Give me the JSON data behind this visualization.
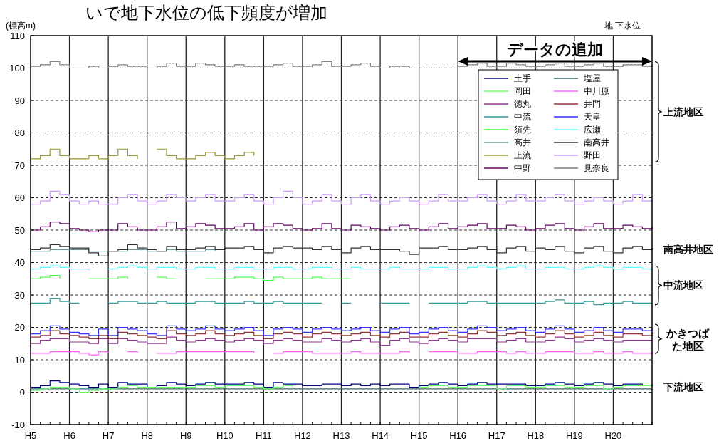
{
  "chart_data": {
    "type": "step",
    "title": "いで地下水位の低下頻度が増加",
    "ylabel": "(標高m)",
    "annotations": [
      "地 下水位",
      "データの追加",
      "上流地区",
      "南高井地区",
      "中流地区",
      "かきつばた地区",
      "下流地区"
    ],
    "categories": [
      "H5",
      null,
      null,
      null,
      "H6",
      null,
      null,
      null,
      "H7",
      null,
      null,
      null,
      "H8",
      null,
      null,
      null,
      "H9",
      null,
      null,
      null,
      "H10",
      null,
      null,
      null,
      "H11",
      null,
      null,
      null,
      "H12",
      null,
      null,
      null,
      "H13",
      null,
      null,
      null,
      "H14",
      null,
      null,
      null,
      "H15",
      null,
      null,
      null,
      "H16",
      null,
      null,
      null,
      "H17",
      null,
      null,
      null,
      "H18",
      null,
      null,
      null,
      "H19",
      null,
      null,
      null,
      "H20",
      null,
      null,
      null,
      null
    ],
    "ylim": [
      -10,
      110
    ],
    "yticks": [
      -10,
      0,
      10,
      20,
      30,
      40,
      50,
      60,
      70,
      80,
      90,
      100,
      110
    ],
    "grid": true,
    "legend": "top right",
    "marker": "none",
    "line_style": "solid",
    "series": [
      {
        "name": "土手",
        "color": "#000080",
        "values": [
          1.5,
          2,
          3.5,
          3,
          2.5,
          2,
          1.5,
          2.5,
          1.5,
          3,
          2.5,
          2.5,
          1.5,
          2,
          3,
          2.5,
          2,
          2.5,
          3,
          2.5,
          2.5,
          2.5,
          3,
          2.5,
          1.5,
          3,
          2.5,
          2.5,
          2,
          2,
          2.5,
          2.5,
          2,
          2.5,
          2,
          2.5,
          2,
          2.5,
          2.5,
          1.5,
          2,
          2.5,
          3,
          2.5,
          2,
          2.5,
          3,
          2.5,
          2.5,
          2.5,
          2.5,
          2,
          2,
          2.5,
          3,
          2.5,
          2,
          2.5,
          3,
          2.5,
          2,
          2.5,
          2.5,
          2,
          2.5
        ]
      },
      {
        "name": "塩屋",
        "color": "#336666",
        "values": [
          1,
          1,
          1,
          1,
          1,
          1,
          1,
          1,
          1,
          1,
          1,
          1,
          1,
          1,
          1,
          1,
          1,
          1,
          1,
          1,
          1,
          1,
          1,
          1,
          1,
          1,
          1,
          1,
          1,
          1,
          1,
          1,
          1,
          1,
          1,
          1,
          1,
          1,
          1,
          1,
          1,
          1,
          1,
          1,
          1,
          1,
          1,
          1,
          1,
          1,
          1,
          1,
          1,
          1,
          1,
          1,
          1,
          1,
          1,
          1,
          1,
          1,
          1,
          1,
          1
        ]
      },
      {
        "name": "岡田",
        "color": "#66ff66",
        "values": [
          0.5,
          1,
          1.5,
          1.5,
          1,
          0,
          0.5,
          1,
          1,
          1.5,
          2,
          1.5,
          1.5,
          1.5,
          1.5,
          1.5,
          1.5,
          2,
          2,
          1.5,
          2,
          2,
          2,
          1.5,
          1,
          1.5,
          2,
          1.5,
          null,
          null,
          null,
          null,
          null,
          null,
          null,
          null,
          null,
          null,
          null,
          null,
          1.5,
          2,
          2,
          1.5,
          1.5,
          2,
          2,
          2,
          1,
          2,
          2,
          1.5,
          1.5,
          2,
          2,
          1.5,
          1.5,
          2,
          2,
          1,
          1.5,
          2,
          2,
          2,
          2
        ]
      },
      {
        "name": "中川原",
        "color": "#ff66ff",
        "values": [
          12,
          12,
          12.5,
          12.5,
          12.5,
          12,
          11.5,
          12.5,
          12,
          null,
          12.5,
          12,
          null,
          12,
          12,
          12.5,
          12.5,
          12.5,
          12.5,
          12.5,
          12.5,
          12.5,
          12.5,
          12,
          null,
          12,
          12.5,
          12.5,
          12.5,
          12,
          12,
          12,
          12,
          12.5,
          12,
          12,
          12,
          12,
          12.5,
          12,
          null,
          12.5,
          12.5,
          12.5,
          12,
          12,
          12.5,
          12.5,
          12.5,
          12,
          12.5,
          12,
          12,
          12.5,
          12.5,
          12.5,
          12,
          12,
          12.5,
          12,
          12,
          12.5,
          12,
          12,
          12.5
        ]
      },
      {
        "name": "徳丸",
        "color": "#993399",
        "values": [
          15,
          16,
          16.5,
          16.5,
          15.5,
          15.5,
          15,
          16.5,
          15,
          16.5,
          16,
          15.5,
          15,
          15,
          17,
          16,
          15.5,
          16,
          16.5,
          16,
          15.5,
          16,
          16.5,
          16,
          15,
          16,
          16.5,
          16,
          15.5,
          15.5,
          16.5,
          16,
          15.5,
          16,
          16.5,
          15.5,
          14.5,
          16,
          16.5,
          15.5,
          15,
          16,
          16.5,
          16,
          15.5,
          16.5,
          16.5,
          16.5,
          15.5,
          16,
          16.5,
          15.5,
          15.5,
          16,
          17,
          16.5,
          15.5,
          16,
          16.5,
          16,
          15.5,
          16,
          16,
          16,
          16
        ]
      },
      {
        "name": "井門",
        "color": "#993333",
        "values": [
          17,
          17.5,
          19,
          18,
          17.5,
          17,
          16.5,
          17.5,
          16.5,
          18.5,
          18,
          17.5,
          17,
          16.5,
          19,
          18,
          17.5,
          18,
          19,
          18,
          17.5,
          18,
          18.5,
          17.5,
          16.5,
          18,
          18.5,
          18,
          17,
          18,
          18.5,
          18,
          17.5,
          18,
          18.5,
          17.5,
          17,
          18,
          18.5,
          17,
          17,
          18,
          18.5,
          17.5,
          17,
          18,
          19,
          18.5,
          17.5,
          18,
          18.5,
          17.5,
          17,
          18,
          19,
          18,
          17,
          17.5,
          18.5,
          17.5,
          17,
          18,
          18,
          17.5,
          18
        ]
      },
      {
        "name": "中流",
        "color": "#339999",
        "values": [
          27.5,
          27.5,
          29,
          28,
          27.5,
          27.5,
          null,
          null,
          27.5,
          28,
          28,
          27.5,
          27.5,
          28,
          27.5,
          27.5,
          27.5,
          28,
          28,
          27.5,
          27.5,
          27.5,
          28,
          27.5,
          27.5,
          28,
          27.5,
          27.5,
          27.5,
          27.5,
          27.5,
          null,
          27.5,
          27.5,
          null,
          null,
          27.5,
          27.5,
          27.5,
          27.5,
          null,
          27.5,
          27.5,
          27.5,
          27.5,
          28,
          28,
          27.5,
          27.5,
          27.5,
          27.5,
          27.5,
          27.5,
          28,
          28.5,
          27.5,
          27.5,
          28,
          27,
          27.5,
          27.5,
          28,
          27.5,
          27.5,
          27.5
        ]
      },
      {
        "name": "天皇",
        "color": "#3333ff",
        "values": [
          18,
          19,
          20.5,
          19.5,
          18.5,
          18,
          17.5,
          19.5,
          17.5,
          20,
          19.5,
          19,
          18,
          17.5,
          20.5,
          19.5,
          19,
          19.5,
          20.5,
          19.5,
          19,
          19.5,
          20,
          19,
          17.5,
          19.5,
          20,
          19.5,
          18.5,
          19.5,
          20,
          19.5,
          19,
          19.5,
          20,
          19,
          18.5,
          19.5,
          20,
          18,
          18.5,
          19.5,
          20,
          19,
          18.5,
          19.5,
          20.5,
          20,
          19,
          19.5,
          20,
          19,
          18.5,
          19.5,
          20.5,
          19.5,
          18.5,
          19,
          20,
          19,
          18.5,
          19.5,
          19.5,
          19,
          19.5
        ]
      },
      {
        "name": "須先",
        "color": "#33ff33",
        "values": [
          35,
          35.5,
          36,
          35,
          null,
          null,
          35,
          35,
          35,
          35.5,
          35,
          null,
          null,
          35.5,
          35,
          35,
          null,
          null,
          35,
          35,
          35,
          35.5,
          35.5,
          35,
          34.5,
          35.5,
          35,
          35,
          35,
          35.5,
          35,
          35,
          35,
          35,
          null,
          null,
          null,
          null,
          null,
          null,
          null,
          null,
          null,
          null,
          null,
          null,
          null,
          null,
          null,
          null,
          null,
          null,
          null,
          null,
          null,
          null,
          null,
          null,
          null,
          null,
          null,
          null,
          null,
          null,
          null
        ]
      },
      {
        "name": "広瀬",
        "color": "#66ffff",
        "values": [
          38,
          38.5,
          39,
          38.5,
          38,
          38,
          37.5,
          null,
          38,
          38.5,
          39,
          38.5,
          38,
          38.5,
          38.5,
          38,
          38,
          38.5,
          38.5,
          38,
          38,
          38.5,
          38.5,
          38,
          38,
          38.5,
          38.5,
          38,
          38,
          38.5,
          38.5,
          38,
          38,
          38.5,
          38,
          38,
          38,
          38.5,
          38,
          38,
          38,
          38.5,
          38.5,
          38,
          38,
          38.5,
          39,
          38.5,
          38,
          38.5,
          39,
          38,
          38,
          38.5,
          38.5,
          38,
          38,
          38.5,
          39,
          38.5,
          38,
          38.5,
          38.5,
          38,
          38
        ]
      },
      {
        "name": "高井",
        "color": "#669999",
        "values": [
          43.5,
          43.5,
          44,
          44,
          44,
          44,
          43.5,
          43.5,
          43.5,
          43.5,
          44,
          44,
          43.5,
          43.5,
          44,
          43.5,
          43.5,
          43.5,
          44,
          43.5,
          null,
          null,
          null,
          null,
          null,
          null,
          null,
          null,
          null,
          null,
          null,
          null,
          null,
          null,
          null,
          null,
          null,
          null,
          null,
          null,
          null,
          null,
          null,
          null,
          null,
          null,
          null,
          null,
          null,
          null,
          null,
          null,
          null,
          null,
          null,
          null,
          null,
          null,
          null,
          null,
          null,
          null,
          null,
          null,
          null
        ]
      },
      {
        "name": "南高井",
        "color": "#333333",
        "values": [
          44,
          44.5,
          45.5,
          45,
          44.5,
          44.5,
          43,
          42,
          43.5,
          44,
          45.5,
          44.5,
          44,
          43.5,
          45,
          44,
          44,
          44.5,
          45,
          44,
          44.5,
          44.5,
          45,
          44,
          43,
          44.5,
          45,
          44.5,
          44.5,
          44,
          45,
          44,
          43,
          44.5,
          45,
          44,
          44,
          44,
          43.5,
          42.5,
          44.5,
          44.5,
          45,
          44,
          44,
          44.5,
          45,
          44,
          43,
          44.5,
          45,
          43.5,
          44.5,
          44,
          45,
          43.5,
          43,
          44.5,
          45,
          43.5,
          43,
          44.5,
          45,
          44,
          44.5
        ]
      },
      {
        "name": "上流",
        "color": "#999933",
        "values": [
          72,
          73,
          75,
          73,
          72,
          72,
          73,
          72,
          73,
          75,
          73,
          72,
          null,
          75,
          73,
          72,
          72,
          73,
          74,
          73,
          72,
          73,
          74,
          73,
          null,
          null,
          null,
          null,
          null,
          null,
          null,
          null,
          null,
          null,
          null,
          null,
          null,
          null,
          null,
          null,
          null,
          null,
          null,
          null,
          null,
          null,
          null,
          null,
          null,
          null,
          null,
          null,
          null,
          null,
          null,
          null,
          null,
          null,
          null,
          null,
          null,
          null,
          null,
          null,
          null
        ]
      },
      {
        "name": "野田",
        "color": "#cc99ff",
        "values": [
          58,
          59,
          62,
          61,
          59,
          58,
          59,
          58,
          58,
          60,
          61,
          59,
          58,
          59,
          61,
          60,
          59,
          60,
          61,
          59,
          59,
          60,
          61,
          59,
          58,
          60,
          62,
          60,
          58,
          59,
          61,
          59,
          58,
          60,
          61,
          59,
          58,
          59,
          60,
          59,
          58,
          59,
          61,
          59,
          59,
          60,
          61,
          59,
          58,
          59,
          61,
          59,
          59,
          60,
          61,
          59,
          58,
          59,
          60,
          59,
          58,
          59,
          61,
          59,
          59
        ]
      },
      {
        "name": "中野",
        "color": "#660066",
        "values": [
          50,
          51,
          52.5,
          52,
          50.5,
          50,
          49.5,
          50,
          50,
          52,
          51,
          50,
          50,
          51,
          52.5,
          50.5,
          51,
          52,
          51.5,
          50.5,
          50.5,
          51,
          52,
          50,
          51,
          52,
          51.5,
          50.5,
          50,
          50.5,
          52,
          50.5,
          50,
          51.5,
          51,
          50.5,
          50,
          51,
          51.5,
          50.5,
          50,
          51,
          52,
          50.5,
          51,
          51.5,
          52,
          50.5,
          50.5,
          51.5,
          51,
          50,
          50.5,
          51.5,
          52,
          50.5,
          50,
          51,
          52,
          50.5,
          50.5,
          51.5,
          51,
          50.5,
          51
        ]
      },
      {
        "name": "見奈良",
        "color": "#808080",
        "values": [
          100.5,
          101,
          102,
          101,
          100,
          100,
          100.5,
          100,
          100.5,
          101,
          100.5,
          100.5,
          100,
          100.5,
          101.5,
          100.5,
          100.5,
          101.5,
          101,
          100.5,
          100.5,
          101,
          100.5,
          100.5,
          100.5,
          101,
          101.5,
          100.5,
          100.5,
          101,
          102,
          100.5,
          100.5,
          101,
          101.5,
          100.5,
          100,
          100.5,
          100.5,
          100,
          null,
          null,
          null,
          null,
          100.5,
          101,
          101.5,
          100.5,
          100.5,
          101.5,
          101,
          100.5,
          100.5,
          101,
          101.5,
          100.5,
          100.5,
          101,
          101.5,
          100.5,
          100.5,
          101,
          101,
          100.5,
          100.5
        ]
      }
    ]
  }
}
